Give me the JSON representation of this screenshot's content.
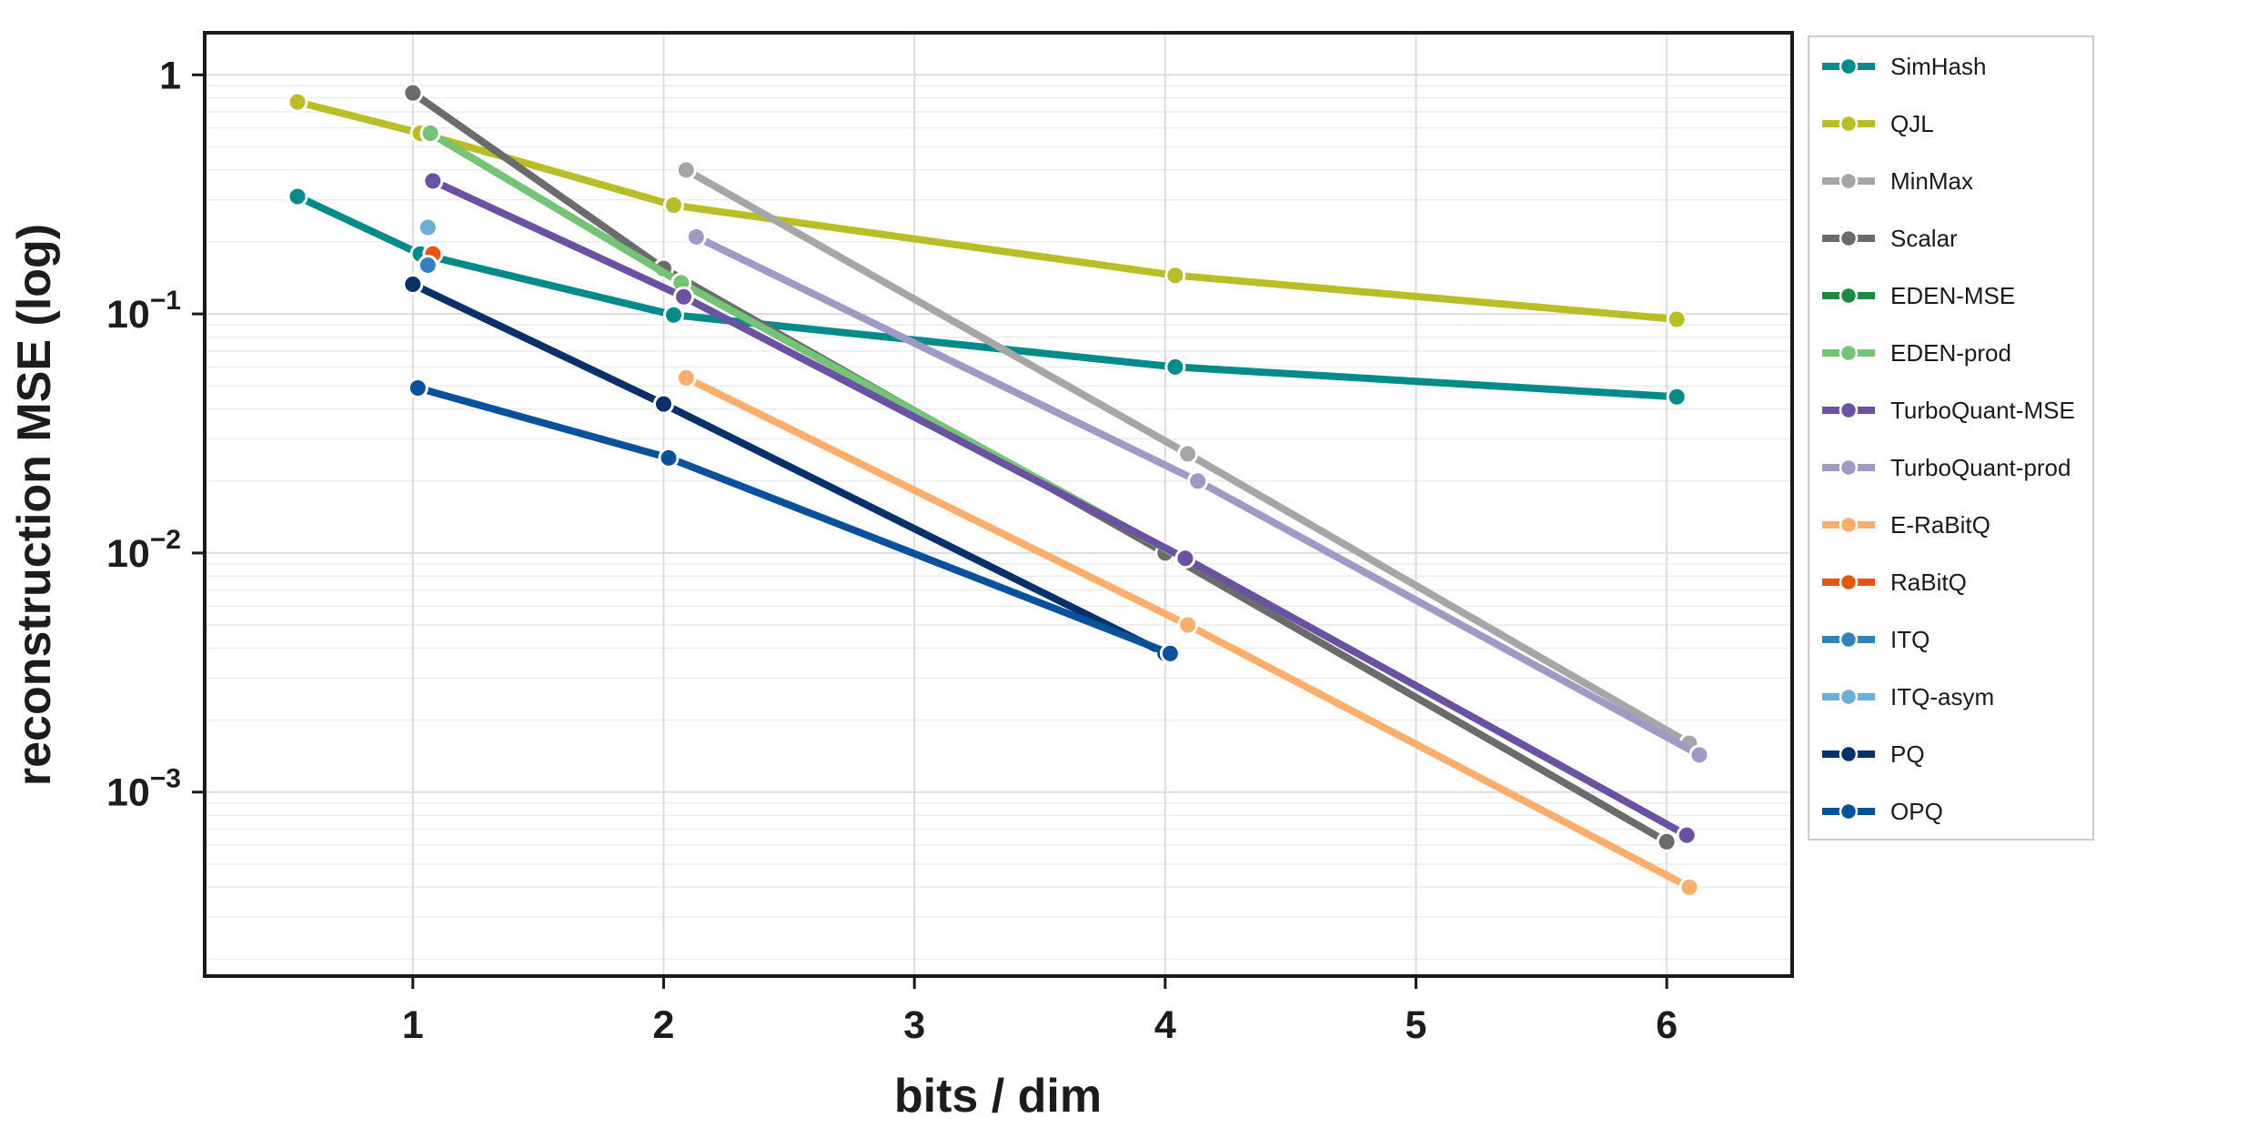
{
  "chart_data": {
    "type": "line",
    "xlabel": "bits / dim",
    "ylabel": "reconstruction MSE (log)",
    "yscale": "log",
    "xlim": [
      0.17,
      6.5
    ],
    "ylim": [
      0.00017,
      1.5
    ],
    "x_ticks": [
      1,
      2,
      3,
      4,
      5,
      6
    ],
    "x_tick_labels": [
      "1",
      "2",
      "3",
      "4",
      "5",
      "6"
    ],
    "y_ticks": [
      {
        "value": 1,
        "base": "1",
        "exp": ""
      },
      {
        "value": 0.1,
        "base": "10",
        "exp": "−1"
      },
      {
        "value": 0.01,
        "base": "10",
        "exp": "−2"
      },
      {
        "value": 0.001,
        "base": "10",
        "exp": "−3"
      }
    ],
    "grid": true,
    "legend_position": "outside-right",
    "series": [
      {
        "name": "SimHash",
        "color": "#008b8b",
        "points": [
          [
            0.54,
            0.31
          ],
          [
            1.03,
            0.178
          ],
          [
            2.04,
            0.099
          ],
          [
            4.04,
            0.06
          ],
          [
            6.04,
            0.045
          ]
        ]
      },
      {
        "name": "QJL",
        "color": "#b9bd26",
        "points": [
          [
            0.54,
            0.77
          ],
          [
            1.03,
            0.57
          ],
          [
            2.04,
            0.285
          ],
          [
            4.04,
            0.145
          ],
          [
            6.04,
            0.095
          ]
        ]
      },
      {
        "name": "MinMax",
        "color": "#a6a6a6",
        "points": [
          [
            2.09,
            0.4
          ],
          [
            4.09,
            0.026
          ],
          [
            6.09,
            0.0016
          ]
        ]
      },
      {
        "name": "Scalar",
        "color": "#6b6b6b",
        "points": [
          [
            1.0,
            0.84
          ],
          [
            2.0,
            0.155
          ],
          [
            4.0,
            0.01
          ],
          [
            6.0,
            0.00062
          ]
        ]
      },
      {
        "name": "EDEN-MSE",
        "color": "#1d8a3e",
        "points": [
          [
            1.07,
            0.57
          ],
          [
            2.07,
            0.135
          ],
          [
            4.07,
            0.0095
          ]
        ]
      },
      {
        "name": "EDEN-prod",
        "color": "#74c476",
        "points": [
          [
            1.07,
            0.57
          ],
          [
            2.07,
            0.135
          ],
          [
            4.07,
            0.0095
          ]
        ]
      },
      {
        "name": "TurboQuant-MSE",
        "color": "#6a51a3",
        "points": [
          [
            1.08,
            0.36
          ],
          [
            2.08,
            0.118
          ],
          [
            4.08,
            0.0095
          ],
          [
            6.08,
            0.00066
          ]
        ]
      },
      {
        "name": "TurboQuant-prod",
        "color": "#9e9ac8",
        "points": [
          [
            2.13,
            0.21
          ],
          [
            4.13,
            0.02
          ],
          [
            6.13,
            0.00143
          ]
        ]
      },
      {
        "name": "E-RaBitQ",
        "color": "#fdae6b",
        "points": [
          [
            2.09,
            0.054
          ],
          [
            4.09,
            0.005
          ],
          [
            6.09,
            0.0004
          ]
        ]
      },
      {
        "name": "RaBitQ",
        "color": "#e6550d",
        "points": [
          [
            1.08,
            0.178
          ]
        ]
      },
      {
        "name": "ITQ",
        "color": "#3182bd",
        "points": [
          [
            1.06,
            0.16
          ]
        ]
      },
      {
        "name": "ITQ-asym",
        "color": "#6baed6",
        "points": [
          [
            1.06,
            0.23
          ]
        ]
      },
      {
        "name": "PQ",
        "color": "#08306b",
        "points": [
          [
            1.0,
            0.133
          ],
          [
            2.0,
            0.042
          ],
          [
            4.0,
            0.0038
          ]
        ]
      },
      {
        "name": "OPQ",
        "color": "#08519c",
        "points": [
          [
            1.02,
            0.049
          ],
          [
            2.02,
            0.025
          ],
          [
            4.02,
            0.0038
          ]
        ]
      }
    ]
  }
}
